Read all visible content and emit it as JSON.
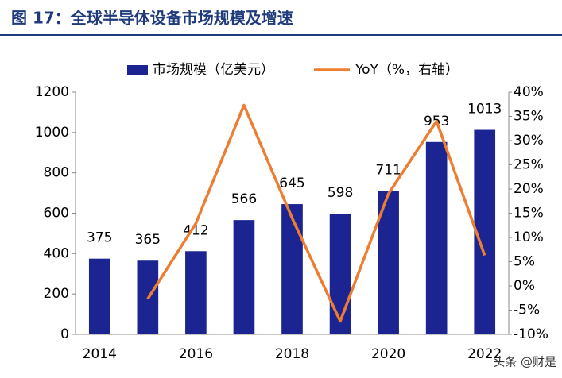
{
  "chart_data": {
    "type": "bar-line",
    "title": "图 17：全球半导体设备市场规模及增速",
    "categories": [
      "2014",
      null,
      "2016",
      null,
      "2018",
      null,
      "2020",
      null,
      "2022"
    ],
    "series": [
      {
        "name": "市场规模（亿美元）",
        "type": "bar",
        "color": "#1b2490",
        "values": [
          375,
          365,
          412,
          566,
          645,
          598,
          711,
          953,
          1013
        ]
      },
      {
        "name": "YoY（%，右轴）",
        "type": "line",
        "axis": "y2",
        "color": "#ed7d31",
        "values": [
          null,
          -2.7,
          12.9,
          37.3,
          14.0,
          -7.3,
          19.0,
          34.0,
          6.3
        ]
      }
    ],
    "ylim": [
      0,
      1200
    ],
    "yticks": [
      0,
      200,
      400,
      600,
      800,
      1000,
      1200
    ],
    "y2lim": [
      -10,
      40
    ],
    "y2ticks": [
      {
        "value": -10,
        "label": "-10%"
      },
      {
        "value": -5,
        "label": "-5%"
      },
      {
        "value": 0,
        "label": "0%"
      },
      {
        "value": 5,
        "label": "5%"
      },
      {
        "value": 10,
        "label": "10%"
      },
      {
        "value": 15,
        "label": "15%"
      },
      {
        "value": 20,
        "label": "20%"
      },
      {
        "value": 25,
        "label": "25%"
      },
      {
        "value": 30,
        "label": "30%"
      },
      {
        "value": 35,
        "label": "35%"
      },
      {
        "value": 40,
        "label": "40%"
      }
    ],
    "grid": false,
    "watermark": "头条 @财是"
  }
}
